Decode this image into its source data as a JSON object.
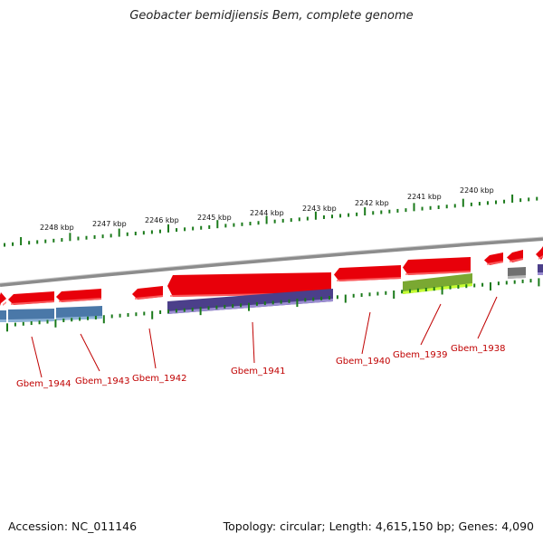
{
  "title": "Geobacter bemidjiensis Bem, complete genome",
  "footer": {
    "accession": "Accession: NC_011146",
    "topology": "Topology: circular; Length: 4,615,150 bp; Genes: 4,090"
  },
  "colors": {
    "cds_forward": "#e8000a",
    "gene_reverse_blue": "#4a78a8",
    "gene_reverse_purple": "#4b3f8a",
    "gene_reverse_green": "#7aa832",
    "gene_reverse_gray": "#707070",
    "tick": "#1a7a1a",
    "backbone": "#8c8c8c",
    "label": "#c00000"
  },
  "kbp_labels": [
    "2248 kbp",
    "2247 kbp",
    "2246 kbp",
    "2245 kbp",
    "2244 kbp",
    "2243 kbp",
    "2242 kbp",
    "2241 kbp",
    "2240 kbp"
  ],
  "gene_labels": [
    "Gbem_1944",
    "Gbem_1943",
    "Gbem_1942",
    "Gbem_1941",
    "Gbem_1940",
    "Gbem_1939",
    "Gbem_1938"
  ]
}
